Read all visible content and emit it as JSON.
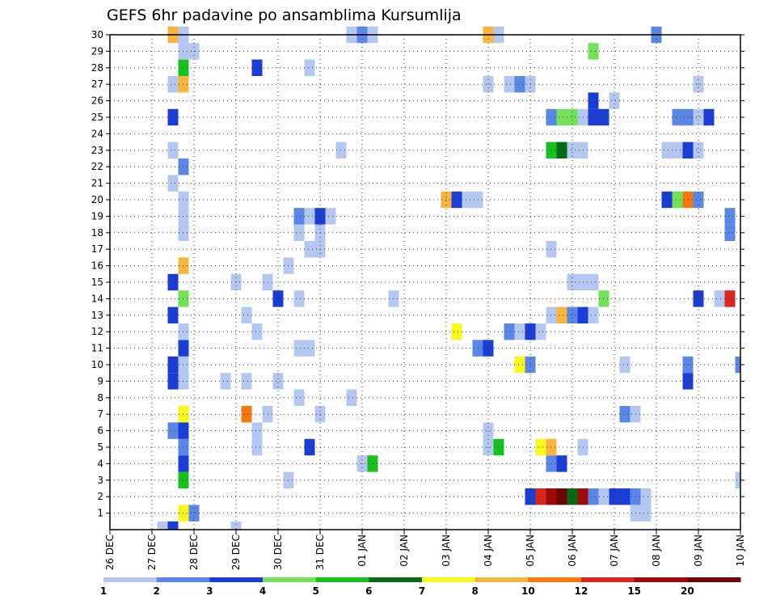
{
  "chart_data": {
    "type": "heatmap",
    "title": "GEFS 6hr padavine po ansamblima Kursumlija",
    "xlabel": "",
    "ylabel": "",
    "x_tick_labels": [
      "26 DEC",
      "27 DEC",
      "28 DEC",
      "29 DEC",
      "30 DEC",
      "31 DEC",
      "01 JAN",
      "02 JAN",
      "03 JAN",
      "04 JAN",
      "05 JAN",
      "06 JAN",
      "07 JAN",
      "08 JAN",
      "09 JAN",
      "10 JAN"
    ],
    "y_tick_labels": [
      "1",
      "2",
      "3",
      "4",
      "5",
      "6",
      "7",
      "8",
      "9",
      "10",
      "11",
      "12",
      "13",
      "14",
      "15",
      "16",
      "17",
      "18",
      "19",
      "20",
      "21",
      "22",
      "23",
      "24",
      "25",
      "26",
      "27",
      "28",
      "29",
      "30"
    ],
    "x_range_hours": [
      0,
      360
    ],
    "y_range": [
      0,
      30
    ],
    "step_hours": 6,
    "grid": true,
    "colorbar": {
      "labels": [
        "1",
        "2",
        "3",
        "4",
        "5",
        "6",
        "7",
        "8",
        "10",
        "12",
        "15",
        "20"
      ],
      "colors": [
        "#b4c7f0",
        "#5a87e6",
        "#1a3dd6",
        "#74e05a",
        "#18c01e",
        "#046a14",
        "#f8f81c",
        "#f8b43c",
        "#f47a10",
        "#d8281c",
        "#a00a0a",
        "#6c0404"
      ]
    },
    "cells": [
      {
        "member": 0,
        "hour": 30,
        "c": 0
      },
      {
        "member": 0,
        "hour": 36,
        "c": 2
      },
      {
        "member": 0,
        "hour": 72,
        "c": 0
      },
      {
        "member": 1,
        "hour": 42,
        "c": 6
      },
      {
        "member": 1,
        "hour": 48,
        "c": 1
      },
      {
        "member": 1,
        "hour": 300,
        "c": 0
      },
      {
        "member": 1,
        "hour": 306,
        "c": 0
      },
      {
        "member": 2,
        "hour": 240,
        "c": 2
      },
      {
        "member": 2,
        "hour": 246,
        "c": 9
      },
      {
        "member": 2,
        "hour": 252,
        "c": 10
      },
      {
        "member": 2,
        "hour": 258,
        "c": 11
      },
      {
        "member": 2,
        "hour": 264,
        "c": 5
      },
      {
        "member": 2,
        "hour": 270,
        "c": 10
      },
      {
        "member": 2,
        "hour": 276,
        "c": 1
      },
      {
        "member": 2,
        "hour": 282,
        "c": 0
      },
      {
        "member": 2,
        "hour": 288,
        "c": 2
      },
      {
        "member": 2,
        "hour": 294,
        "c": 2
      },
      {
        "member": 2,
        "hour": 300,
        "c": 1
      },
      {
        "member": 2,
        "hour": 306,
        "c": 0
      },
      {
        "member": 3,
        "hour": 42,
        "c": 4
      },
      {
        "member": 3,
        "hour": 102,
        "c": 0
      },
      {
        "member": 3,
        "hour": 360,
        "c": 0
      },
      {
        "member": 4,
        "hour": 42,
        "c": 2
      },
      {
        "member": 4,
        "hour": 144,
        "c": 0
      },
      {
        "member": 4,
        "hour": 150,
        "c": 4
      },
      {
        "member": 4,
        "hour": 252,
        "c": 1
      },
      {
        "member": 4,
        "hour": 258,
        "c": 2
      },
      {
        "member": 5,
        "hour": 42,
        "c": 1
      },
      {
        "member": 5,
        "hour": 84,
        "c": 0
      },
      {
        "member": 5,
        "hour": 114,
        "c": 2
      },
      {
        "member": 5,
        "hour": 216,
        "c": 0
      },
      {
        "member": 5,
        "hour": 222,
        "c": 4
      },
      {
        "member": 5,
        "hour": 246,
        "c": 6
      },
      {
        "member": 5,
        "hour": 252,
        "c": 7
      },
      {
        "member": 5,
        "hour": 270,
        "c": 0
      },
      {
        "member": 6,
        "hour": 36,
        "c": 1
      },
      {
        "member": 6,
        "hour": 42,
        "c": 2
      },
      {
        "member": 6,
        "hour": 84,
        "c": 0
      },
      {
        "member": 6,
        "hour": 216,
        "c": 0
      },
      {
        "member": 7,
        "hour": 42,
        "c": 6
      },
      {
        "member": 7,
        "hour": 78,
        "c": 8
      },
      {
        "member": 7,
        "hour": 90,
        "c": 0
      },
      {
        "member": 7,
        "hour": 120,
        "c": 0
      },
      {
        "member": 7,
        "hour": 294,
        "c": 1
      },
      {
        "member": 7,
        "hour": 300,
        "c": 0
      },
      {
        "member": 8,
        "hour": 108,
        "c": 0
      },
      {
        "member": 8,
        "hour": 138,
        "c": 0
      },
      {
        "member": 9,
        "hour": 36,
        "c": 2
      },
      {
        "member": 9,
        "hour": 42,
        "c": 0
      },
      {
        "member": 9,
        "hour": 66,
        "c": 0
      },
      {
        "member": 9,
        "hour": 78,
        "c": 0
      },
      {
        "member": 9,
        "hour": 96,
        "c": 0
      },
      {
        "member": 9,
        "hour": 330,
        "c": 2
      },
      {
        "member": 10,
        "hour": 36,
        "c": 2
      },
      {
        "member": 10,
        "hour": 42,
        "c": 0
      },
      {
        "member": 10,
        "hour": 234,
        "c": 6
      },
      {
        "member": 10,
        "hour": 240,
        "c": 1
      },
      {
        "member": 10,
        "hour": 294,
        "c": 0
      },
      {
        "member": 10,
        "hour": 330,
        "c": 1
      },
      {
        "member": 10,
        "hour": 360,
        "c": 1
      },
      {
        "member": 11,
        "hour": 42,
        "c": 2
      },
      {
        "member": 11,
        "hour": 108,
        "c": 0
      },
      {
        "member": 11,
        "hour": 114,
        "c": 0
      },
      {
        "member": 11,
        "hour": 210,
        "c": 1
      },
      {
        "member": 11,
        "hour": 216,
        "c": 2
      },
      {
        "member": 12,
        "hour": 42,
        "c": 0
      },
      {
        "member": 12,
        "hour": 84,
        "c": 0
      },
      {
        "member": 12,
        "hour": 198,
        "c": 6
      },
      {
        "member": 12,
        "hour": 228,
        "c": 1
      },
      {
        "member": 12,
        "hour": 234,
        "c": 0
      },
      {
        "member": 12,
        "hour": 240,
        "c": 2
      },
      {
        "member": 12,
        "hour": 246,
        "c": 0
      },
      {
        "member": 13,
        "hour": 36,
        "c": 2
      },
      {
        "member": 13,
        "hour": 78,
        "c": 0
      },
      {
        "member": 13,
        "hour": 252,
        "c": 0
      },
      {
        "member": 13,
        "hour": 258,
        "c": 7
      },
      {
        "member": 13,
        "hour": 264,
        "c": 1
      },
      {
        "member": 13,
        "hour": 270,
        "c": 2
      },
      {
        "member": 13,
        "hour": 276,
        "c": 0
      },
      {
        "member": 14,
        "hour": 42,
        "c": 3
      },
      {
        "member": 14,
        "hour": 96,
        "c": 2
      },
      {
        "member": 14,
        "hour": 108,
        "c": 0
      },
      {
        "member": 14,
        "hour": 162,
        "c": 0
      },
      {
        "member": 14,
        "hour": 282,
        "c": 3
      },
      {
        "member": 14,
        "hour": 336,
        "c": 2
      },
      {
        "member": 14,
        "hour": 348,
        "c": 0
      },
      {
        "member": 14,
        "hour": 354,
        "c": 9
      },
      {
        "member": 15,
        "hour": 36,
        "c": 2
      },
      {
        "member": 15,
        "hour": 72,
        "c": 0
      },
      {
        "member": 15,
        "hour": 90,
        "c": 0
      },
      {
        "member": 15,
        "hour": 264,
        "c": 0
      },
      {
        "member": 15,
        "hour": 270,
        "c": 0
      },
      {
        "member": 15,
        "hour": 276,
        "c": 0
      },
      {
        "member": 16,
        "hour": 42,
        "c": 7
      },
      {
        "member": 16,
        "hour": 102,
        "c": 0
      },
      {
        "member": 17,
        "hour": 114,
        "c": 0
      },
      {
        "member": 17,
        "hour": 120,
        "c": 0
      },
      {
        "member": 17,
        "hour": 252,
        "c": 0
      },
      {
        "member": 18,
        "hour": 42,
        "c": 0
      },
      {
        "member": 18,
        "hour": 108,
        "c": 0
      },
      {
        "member": 18,
        "hour": 120,
        "c": 0
      },
      {
        "member": 18,
        "hour": 354,
        "c": 1
      },
      {
        "member": 19,
        "hour": 42,
        "c": 0
      },
      {
        "member": 19,
        "hour": 108,
        "c": 1
      },
      {
        "member": 19,
        "hour": 114,
        "c": 0
      },
      {
        "member": 19,
        "hour": 120,
        "c": 2
      },
      {
        "member": 19,
        "hour": 126,
        "c": 0
      },
      {
        "member": 19,
        "hour": 354,
        "c": 1
      },
      {
        "member": 20,
        "hour": 42,
        "c": 0
      },
      {
        "member": 20,
        "hour": 192,
        "c": 7
      },
      {
        "member": 20,
        "hour": 198,
        "c": 2
      },
      {
        "member": 20,
        "hour": 204,
        "c": 0
      },
      {
        "member": 20,
        "hour": 210,
        "c": 0
      },
      {
        "member": 20,
        "hour": 318,
        "c": 2
      },
      {
        "member": 20,
        "hour": 324,
        "c": 3
      },
      {
        "member": 20,
        "hour": 330,
        "c": 8
      },
      {
        "member": 20,
        "hour": 336,
        "c": 1
      },
      {
        "member": 21,
        "hour": 36,
        "c": 0
      },
      {
        "member": 22,
        "hour": 42,
        "c": 1
      },
      {
        "member": 23,
        "hour": 36,
        "c": 0
      },
      {
        "member": 23,
        "hour": 132,
        "c": 0
      },
      {
        "member": 23,
        "hour": 252,
        "c": 4
      },
      {
        "member": 23,
        "hour": 258,
        "c": 5
      },
      {
        "member": 23,
        "hour": 264,
        "c": 0
      },
      {
        "member": 23,
        "hour": 270,
        "c": 0
      },
      {
        "member": 23,
        "hour": 318,
        "c": 0
      },
      {
        "member": 23,
        "hour": 324,
        "c": 0
      },
      {
        "member": 23,
        "hour": 330,
        "c": 2
      },
      {
        "member": 23,
        "hour": 336,
        "c": 0
      },
      {
        "member": 25,
        "hour": 36,
        "c": 2
      },
      {
        "member": 25,
        "hour": 252,
        "c": 1
      },
      {
        "member": 25,
        "hour": 258,
        "c": 3
      },
      {
        "member": 25,
        "hour": 264,
        "c": 3
      },
      {
        "member": 25,
        "hour": 270,
        "c": 0
      },
      {
        "member": 25,
        "hour": 276,
        "c": 2
      },
      {
        "member": 25,
        "hour": 282,
        "c": 2
      },
      {
        "member": 25,
        "hour": 324,
        "c": 1
      },
      {
        "member": 25,
        "hour": 330,
        "c": 1
      },
      {
        "member": 25,
        "hour": 336,
        "c": 0
      },
      {
        "member": 25,
        "hour": 342,
        "c": 2
      },
      {
        "member": 26,
        "hour": 276,
        "c": 2
      },
      {
        "member": 26,
        "hour": 288,
        "c": 0
      },
      {
        "member": 27,
        "hour": 36,
        "c": 0
      },
      {
        "member": 27,
        "hour": 42,
        "c": 7
      },
      {
        "member": 27,
        "hour": 216,
        "c": 0
      },
      {
        "member": 27,
        "hour": 228,
        "c": 0
      },
      {
        "member": 27,
        "hour": 234,
        "c": 1
      },
      {
        "member": 27,
        "hour": 240,
        "c": 0
      },
      {
        "member": 27,
        "hour": 336,
        "c": 0
      },
      {
        "member": 28,
        "hour": 42,
        "c": 4
      },
      {
        "member": 28,
        "hour": 84,
        "c": 2
      },
      {
        "member": 28,
        "hour": 114,
        "c": 0
      },
      {
        "member": 29,
        "hour": 42,
        "c": 0
      },
      {
        "member": 29,
        "hour": 48,
        "c": 0
      },
      {
        "member": 29,
        "hour": 276,
        "c": 3
      },
      {
        "member": 30,
        "hour": 36,
        "c": 7
      },
      {
        "member": 30,
        "hour": 42,
        "c": 0
      },
      {
        "member": 30,
        "hour": 138,
        "c": 0
      },
      {
        "member": 30,
        "hour": 144,
        "c": 1
      },
      {
        "member": 30,
        "hour": 150,
        "c": 0
      },
      {
        "member": 30,
        "hour": 216,
        "c": 7
      },
      {
        "member": 30,
        "hour": 222,
        "c": 0
      },
      {
        "member": 30,
        "hour": 312,
        "c": 1
      }
    ]
  }
}
